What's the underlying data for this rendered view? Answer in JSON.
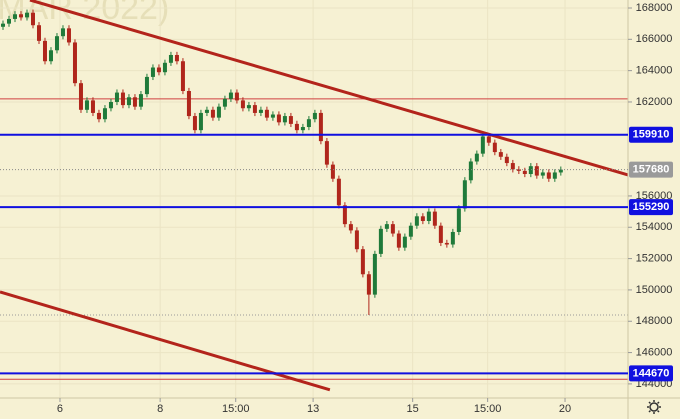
{
  "chart_data": {
    "type": "candlestick",
    "watermark": "(MAR 2022)",
    "open": [
      166800,
      167000,
      167300,
      167600,
      167400,
      167700,
      166900,
      165900,
      164600,
      165300,
      166200,
      166700,
      165800,
      163200,
      161500,
      162100,
      161300,
      160900,
      161600,
      162000,
      162600,
      161800,
      162300,
      161700,
      162500,
      163600,
      164200,
      163900,
      164500,
      165000,
      164600,
      162700,
      161100,
      160200,
      161300,
      161500,
      161000,
      161700,
      162200,
      162600,
      162100,
      161600,
      161800,
      161300,
      161500,
      161000,
      161200,
      160700,
      161100,
      160600,
      160200,
      160400,
      160900,
      161300,
      159500,
      158000,
      157100,
      155400,
      154200,
      153800,
      152600,
      151000,
      149700,
      152300,
      153900,
      154200,
      153600,
      152700,
      153400,
      154100,
      154700,
      154400,
      155000,
      154100,
      153000,
      152900,
      153700,
      155200,
      157000,
      158200,
      158700,
      159800,
      159400,
      158800,
      158500,
      158100,
      157700,
      157600,
      157400,
      157900,
      157300,
      157500,
      157100,
      157500
    ],
    "high": [
      167200,
      167500,
      167800,
      167800,
      167900,
      167900,
      167100,
      166100,
      165500,
      166400,
      166900,
      166900,
      166000,
      163400,
      162300,
      162300,
      161500,
      161800,
      162200,
      162800,
      162800,
      162500,
      162500,
      162700,
      163800,
      164400,
      164400,
      164700,
      165200,
      165200,
      164800,
      162900,
      161300,
      161500,
      161700,
      161700,
      161900,
      162400,
      162800,
      162800,
      162300,
      162000,
      162000,
      161700,
      161700,
      161400,
      161400,
      161300,
      161300,
      160800,
      160600,
      161100,
      161500,
      161500,
      159700,
      158200,
      157300,
      155600,
      154400,
      154000,
      152800,
      151200,
      152500,
      154100,
      154400,
      154400,
      153800,
      153600,
      154300,
      154900,
      154900,
      155200,
      155200,
      154300,
      153200,
      153900,
      155400,
      157200,
      158400,
      158900,
      160000,
      160000,
      159600,
      159000,
      158700,
      158300,
      157900,
      157800,
      158100,
      158100,
      157700,
      157700,
      157700,
      157880
    ],
    "low": [
      166600,
      166800,
      167100,
      167200,
      167200,
      166700,
      165700,
      164400,
      164400,
      165100,
      166000,
      165600,
      163000,
      161300,
      161300,
      161100,
      160700,
      160700,
      161400,
      161800,
      161600,
      161600,
      161500,
      161500,
      162300,
      163400,
      163700,
      163700,
      164300,
      164400,
      162500,
      160900,
      160000,
      160000,
      161100,
      160800,
      160800,
      161500,
      162000,
      161900,
      161400,
      161400,
      161100,
      161100,
      160800,
      160800,
      160500,
      160500,
      160400,
      160000,
      160000,
      160200,
      160700,
      159300,
      157800,
      156900,
      155200,
      154000,
      153600,
      152400,
      150800,
      148400,
      149500,
      152100,
      153700,
      153400,
      152500,
      152500,
      153200,
      153900,
      154200,
      154200,
      153900,
      152800,
      152700,
      152700,
      153500,
      155000,
      156800,
      158000,
      158500,
      159200,
      158600,
      158300,
      157900,
      157500,
      157400,
      157200,
      157200,
      157100,
      157100,
      156900,
      156900,
      157300
    ],
    "close": [
      167000,
      167300,
      167600,
      167400,
      167700,
      166900,
      165900,
      164600,
      165300,
      166200,
      166700,
      165800,
      163200,
      161500,
      162100,
      161300,
      160900,
      161600,
      162000,
      162600,
      161800,
      162300,
      161700,
      162500,
      163600,
      164200,
      163900,
      164500,
      165000,
      164600,
      162700,
      161100,
      160200,
      161300,
      161500,
      161000,
      161700,
      162200,
      162600,
      162100,
      161600,
      161800,
      161300,
      161500,
      161000,
      161200,
      160700,
      161100,
      160600,
      160200,
      160400,
      160900,
      161300,
      159500,
      158000,
      157100,
      155400,
      154200,
      153800,
      152600,
      151000,
      149700,
      152300,
      153900,
      154200,
      153600,
      152700,
      153400,
      154100,
      154700,
      154400,
      155000,
      154100,
      153000,
      152900,
      153700,
      155200,
      157000,
      158200,
      158700,
      159800,
      159400,
      158800,
      158500,
      158100,
      157700,
      157600,
      157400,
      157900,
      157300,
      157500,
      157100,
      157500,
      157680
    ],
    "up_color": "#1f7a3a",
    "down_color": "#b0261c",
    "ylim": [
      143100,
      168510
    ],
    "yticks": [
      144000,
      146000,
      148000,
      150000,
      152000,
      154000,
      156000,
      162000,
      164000,
      166000,
      168000
    ],
    "xlim": [
      -0.5,
      104.2
    ],
    "xticks": [
      {
        "value": 9.5,
        "label": "6"
      },
      {
        "value": 26.2,
        "label": "8"
      },
      {
        "value": 38.8,
        "label": "15:00"
      },
      {
        "value": 51.7,
        "label": "13"
      },
      {
        "value": 68.3,
        "label": "15"
      },
      {
        "value": 80.8,
        "label": "15:00"
      },
      {
        "value": 93.7,
        "label": "20"
      }
    ],
    "grid": true,
    "levels": [
      {
        "value": 159910,
        "color": "#1010e0"
      },
      {
        "value": 155290,
        "color": "#1010e0"
      },
      {
        "value": 144670,
        "color": "#1010e0"
      }
    ],
    "red_levels": [
      162200,
      144300
    ],
    "red_level_color": "#d04040",
    "last_price": {
      "value": 157680,
      "color": "#9a9a9a"
    },
    "low_marker": 148400,
    "trendlines": [
      {
        "x": [
          4.5,
          104.2
        ],
        "y": [
          168510,
          157340
        ],
        "color": "#b3241b"
      },
      {
        "x": [
          -0.5,
          54.5
        ],
        "y": [
          149870,
          143620
        ],
        "color": "#b3241b"
      }
    ]
  }
}
